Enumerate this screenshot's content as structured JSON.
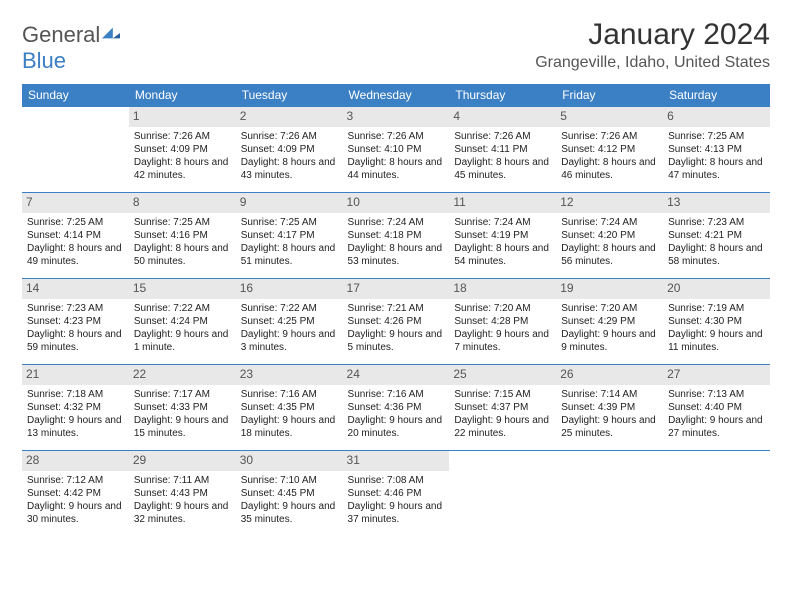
{
  "logo": {
    "word1": "General",
    "word2": "Blue"
  },
  "title": "January 2024",
  "location": "Grangeville, Idaho, United States",
  "day_headers": [
    "Sunday",
    "Monday",
    "Tuesday",
    "Wednesday",
    "Thursday",
    "Friday",
    "Saturday"
  ],
  "colors": {
    "accent": "#3b7fc4",
    "header_text": "#ffffff",
    "daynum_bg": "#e8e8e8"
  },
  "weeks": [
    [
      {
        "n": "",
        "t": ""
      },
      {
        "n": "1",
        "t": "Sunrise: 7:26 AM\nSunset: 4:09 PM\nDaylight: 8 hours and 42 minutes."
      },
      {
        "n": "2",
        "t": "Sunrise: 7:26 AM\nSunset: 4:09 PM\nDaylight: 8 hours and 43 minutes."
      },
      {
        "n": "3",
        "t": "Sunrise: 7:26 AM\nSunset: 4:10 PM\nDaylight: 8 hours and 44 minutes."
      },
      {
        "n": "4",
        "t": "Sunrise: 7:26 AM\nSunset: 4:11 PM\nDaylight: 8 hours and 45 minutes."
      },
      {
        "n": "5",
        "t": "Sunrise: 7:26 AM\nSunset: 4:12 PM\nDaylight: 8 hours and 46 minutes."
      },
      {
        "n": "6",
        "t": "Sunrise: 7:25 AM\nSunset: 4:13 PM\nDaylight: 8 hours and 47 minutes."
      }
    ],
    [
      {
        "n": "7",
        "t": "Sunrise: 7:25 AM\nSunset: 4:14 PM\nDaylight: 8 hours and 49 minutes."
      },
      {
        "n": "8",
        "t": "Sunrise: 7:25 AM\nSunset: 4:16 PM\nDaylight: 8 hours and 50 minutes."
      },
      {
        "n": "9",
        "t": "Sunrise: 7:25 AM\nSunset: 4:17 PM\nDaylight: 8 hours and 51 minutes."
      },
      {
        "n": "10",
        "t": "Sunrise: 7:24 AM\nSunset: 4:18 PM\nDaylight: 8 hours and 53 minutes."
      },
      {
        "n": "11",
        "t": "Sunrise: 7:24 AM\nSunset: 4:19 PM\nDaylight: 8 hours and 54 minutes."
      },
      {
        "n": "12",
        "t": "Sunrise: 7:24 AM\nSunset: 4:20 PM\nDaylight: 8 hours and 56 minutes."
      },
      {
        "n": "13",
        "t": "Sunrise: 7:23 AM\nSunset: 4:21 PM\nDaylight: 8 hours and 58 minutes."
      }
    ],
    [
      {
        "n": "14",
        "t": "Sunrise: 7:23 AM\nSunset: 4:23 PM\nDaylight: 8 hours and 59 minutes."
      },
      {
        "n": "15",
        "t": "Sunrise: 7:22 AM\nSunset: 4:24 PM\nDaylight: 9 hours and 1 minute."
      },
      {
        "n": "16",
        "t": "Sunrise: 7:22 AM\nSunset: 4:25 PM\nDaylight: 9 hours and 3 minutes."
      },
      {
        "n": "17",
        "t": "Sunrise: 7:21 AM\nSunset: 4:26 PM\nDaylight: 9 hours and 5 minutes."
      },
      {
        "n": "18",
        "t": "Sunrise: 7:20 AM\nSunset: 4:28 PM\nDaylight: 9 hours and 7 minutes."
      },
      {
        "n": "19",
        "t": "Sunrise: 7:20 AM\nSunset: 4:29 PM\nDaylight: 9 hours and 9 minutes."
      },
      {
        "n": "20",
        "t": "Sunrise: 7:19 AM\nSunset: 4:30 PM\nDaylight: 9 hours and 11 minutes."
      }
    ],
    [
      {
        "n": "21",
        "t": "Sunrise: 7:18 AM\nSunset: 4:32 PM\nDaylight: 9 hours and 13 minutes."
      },
      {
        "n": "22",
        "t": "Sunrise: 7:17 AM\nSunset: 4:33 PM\nDaylight: 9 hours and 15 minutes."
      },
      {
        "n": "23",
        "t": "Sunrise: 7:16 AM\nSunset: 4:35 PM\nDaylight: 9 hours and 18 minutes."
      },
      {
        "n": "24",
        "t": "Sunrise: 7:16 AM\nSunset: 4:36 PM\nDaylight: 9 hours and 20 minutes."
      },
      {
        "n": "25",
        "t": "Sunrise: 7:15 AM\nSunset: 4:37 PM\nDaylight: 9 hours and 22 minutes."
      },
      {
        "n": "26",
        "t": "Sunrise: 7:14 AM\nSunset: 4:39 PM\nDaylight: 9 hours and 25 minutes."
      },
      {
        "n": "27",
        "t": "Sunrise: 7:13 AM\nSunset: 4:40 PM\nDaylight: 9 hours and 27 minutes."
      }
    ],
    [
      {
        "n": "28",
        "t": "Sunrise: 7:12 AM\nSunset: 4:42 PM\nDaylight: 9 hours and 30 minutes."
      },
      {
        "n": "29",
        "t": "Sunrise: 7:11 AM\nSunset: 4:43 PM\nDaylight: 9 hours and 32 minutes."
      },
      {
        "n": "30",
        "t": "Sunrise: 7:10 AM\nSunset: 4:45 PM\nDaylight: 9 hours and 35 minutes."
      },
      {
        "n": "31",
        "t": "Sunrise: 7:08 AM\nSunset: 4:46 PM\nDaylight: 9 hours and 37 minutes."
      },
      {
        "n": "",
        "t": ""
      },
      {
        "n": "",
        "t": ""
      },
      {
        "n": "",
        "t": ""
      }
    ]
  ]
}
